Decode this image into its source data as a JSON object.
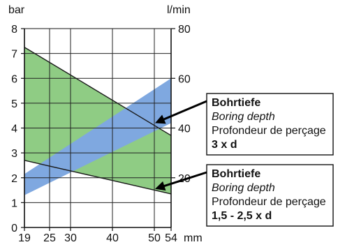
{
  "chart_data": {
    "type": "area",
    "units": {
      "left_y": "bar",
      "right_y": "l/min",
      "x": "mm"
    },
    "x_ticks": [
      19,
      25,
      30,
      40,
      50,
      54
    ],
    "left_y_ticks": [
      0,
      1,
      2,
      3,
      4,
      5,
      6,
      7,
      8
    ],
    "right_y_ticks": [
      20,
      40,
      60,
      80
    ],
    "xlim": [
      19,
      54
    ],
    "left_ylim": [
      0,
      8
    ],
    "right_ylim": [
      0,
      80
    ],
    "grid": true,
    "colors": {
      "pressure_band": "#8fcc84",
      "flow_band": "#7fa8e0",
      "overlap": "#7fa8e0"
    },
    "bands": [
      {
        "axis": "left",
        "color_key": "pressure_band",
        "upper": [
          [
            19,
            7.25
          ],
          [
            54,
            3.7
          ]
        ],
        "lower": [
          [
            19,
            2.7
          ],
          [
            54,
            1.35
          ]
        ]
      },
      {
        "axis": "right",
        "color_key": "flow_band",
        "upper": [
          [
            19,
            21.5
          ],
          [
            54,
            60
          ]
        ],
        "lower": [
          [
            19,
            13
          ],
          [
            54,
            42
          ]
        ]
      }
    ],
    "annotations": [
      {
        "lines": [
          "Bohrtiefe",
          "Boring depth",
          "Profondeur de perçage",
          "3 x d"
        ],
        "pointer_to": [
          50,
          4.2
        ]
      },
      {
        "lines": [
          "Bohrtiefe",
          "Boring depth",
          "Profondeur de perçage",
          "1,5 - 2,5 x d"
        ],
        "pointer_to": [
          50,
          1.55
        ]
      }
    ]
  }
}
